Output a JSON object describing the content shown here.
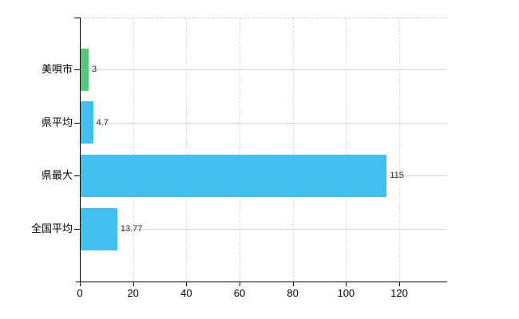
{
  "chart_data": {
    "type": "bar",
    "orientation": "horizontal",
    "title": "",
    "xlabel": "",
    "ylabel": "",
    "categories": [
      "美唄市",
      "県平均",
      "県最大",
      "全国平均"
    ],
    "values": [
      3,
      4.7,
      115,
      13.77
    ],
    "value_labels": [
      "3",
      "4.7",
      "115",
      "13.77"
    ],
    "bar_colors": [
      "#57c77e",
      "#41c0f0",
      "#41c0f0",
      "#41c0f0"
    ],
    "x_ticks": [
      0,
      20,
      40,
      60,
      80,
      100,
      120
    ],
    "x_tick_labels": [
      "0",
      "20",
      "40",
      "60",
      "80",
      "100",
      "120"
    ],
    "xlim": [
      0,
      138
    ],
    "grid": true,
    "legend": "none",
    "colors": {
      "highlight_bar": "#57c77e",
      "default_bar": "#41c0f0",
      "axis": "#000000",
      "gridline_vertical": "#dadada",
      "gridline_horizontal": "#d2d8d2",
      "plot_top_border": "#d2ced2",
      "text": "#000000",
      "value_text": "#2b2b2b",
      "background": "#ffffff"
    }
  }
}
